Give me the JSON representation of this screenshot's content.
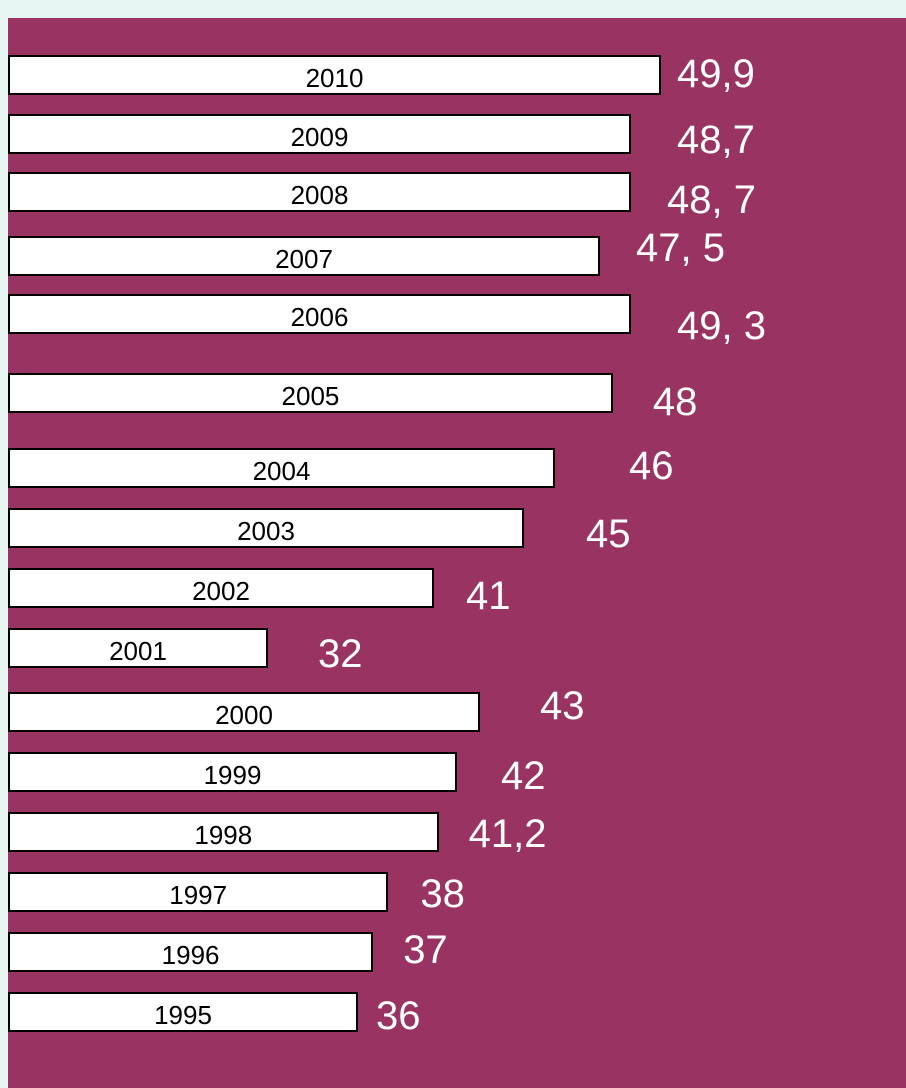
{
  "chart_data": {
    "type": "bar",
    "orientation": "horizontal",
    "title": "",
    "xlabel": "",
    "ylabel": "",
    "categories": [
      "2010",
      "2009",
      "2008",
      "2007",
      "2006",
      "2005",
      "2004",
      "2003",
      "2002",
      "2001",
      "2000",
      "1999",
      "1998",
      "1997",
      "1996",
      "1995"
    ],
    "values": [
      49.9,
      48.7,
      48.7,
      47.5,
      49.3,
      48,
      46,
      45,
      41,
      32,
      43,
      42,
      41.2,
      38,
      37,
      36
    ],
    "value_labels": [
      "49,9",
      "48,7",
      "48, 7",
      "47, 5",
      "49, 3",
      "48",
      "46",
      "45",
      "41",
      "32",
      "43",
      "42",
      "41,2",
      "38",
      "37",
      "36"
    ],
    "grid": false,
    "legend": "none",
    "colors": {
      "background": "#993462",
      "bar": "#ffffff",
      "bar_border": "#000000",
      "label": "#ffffff",
      "page": "#e6f4f2"
    }
  }
}
